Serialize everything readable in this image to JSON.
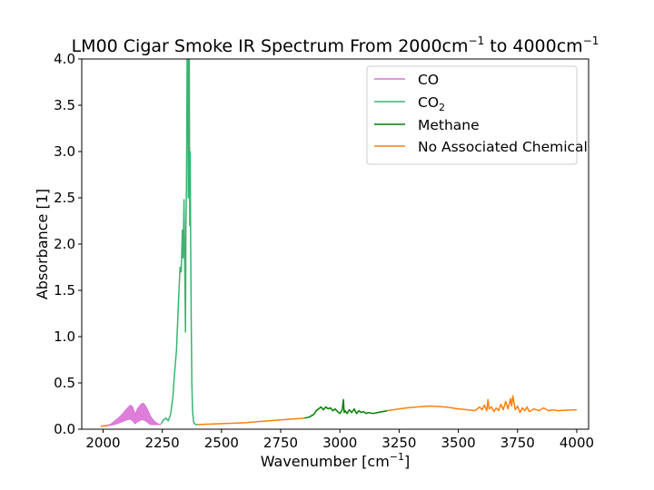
{
  "chart_data": {
    "type": "line",
    "title": "LM00 Cigar Smoke IR Spectrum From 2000cm",
    "title_sup1": "−1",
    "title_mid": " to 4000cm",
    "title_sup2": "−1",
    "xlabel": "Wavenumber [cm",
    "xlabel_sup": "−1",
    "xlabel_end": "]",
    "ylabel": "Absorbance [1]",
    "xlim": [
      1910,
      4050
    ],
    "ylim": [
      0,
      4.0
    ],
    "x_ticks": [
      2000,
      2250,
      2500,
      2750,
      3000,
      3250,
      3500,
      3750,
      4000
    ],
    "y_ticks": [
      0.0,
      0.5,
      1.0,
      1.5,
      2.0,
      2.5,
      3.0,
      3.5,
      4.0
    ],
    "y_tick_labels": [
      "0.0",
      "0.5",
      "1.0",
      "1.5",
      "2.0",
      "2.5",
      "3.0",
      "3.5",
      "4.0"
    ],
    "grid": false,
    "legend_position": "top-right",
    "series": [
      {
        "name": "CO",
        "color": "#da70d6",
        "fill": true,
        "x": [
          2000,
          2030,
          2060,
          2080,
          2100,
          2115,
          2125,
          2135,
          2145,
          2160,
          2170,
          2180,
          2190,
          2200,
          2215,
          2230,
          2245
        ],
        "upper": [
          0.035,
          0.05,
          0.11,
          0.16,
          0.22,
          0.26,
          0.24,
          0.16,
          0.22,
          0.27,
          0.28,
          0.25,
          0.2,
          0.14,
          0.09,
          0.06,
          0.05
        ],
        "lower": [
          0.035,
          0.04,
          0.06,
          0.08,
          0.1,
          0.11,
          0.09,
          0.06,
          0.08,
          0.1,
          0.1,
          0.09,
          0.07,
          0.05,
          0.05,
          0.05,
          0.05
        ]
      },
      {
        "name": "CO2",
        "name_sub": "2",
        "color": "#3cb371",
        "x": [
          2245,
          2255,
          2265,
          2275,
          2285,
          2295,
          2300,
          2310,
          2318,
          2325,
          2330,
          2335,
          2338,
          2342,
          2345,
          2348,
          2350,
          2352,
          2355,
          2358,
          2360,
          2362,
          2364,
          2366,
          2368,
          2370,
          2372,
          2375,
          2378,
          2382,
          2386,
          2392,
          2400
        ],
        "y": [
          0.06,
          0.1,
          0.12,
          0.09,
          0.16,
          0.35,
          0.55,
          0.85,
          1.35,
          1.75,
          1.7,
          2.15,
          1.85,
          2.48,
          1.75,
          1.05,
          2.2,
          2.6,
          4.0,
          4.0,
          2.5,
          4.0,
          4.0,
          2.2,
          3.0,
          2.0,
          1.2,
          0.5,
          0.2,
          0.08,
          0.06,
          0.05,
          0.05
        ]
      },
      {
        "name": "Methane",
        "color": "#008000",
        "x": [
          2850,
          2870,
          2890,
          2900,
          2910,
          2920,
          2930,
          2940,
          2950,
          2960,
          2970,
          2980,
          2990,
          3000,
          3010,
          3015,
          3018,
          3022,
          3030,
          3040,
          3050,
          3060,
          3070,
          3080,
          3090,
          3100,
          3110,
          3120,
          3140,
          3160,
          3180,
          3200
        ],
        "y": [
          0.12,
          0.13,
          0.16,
          0.2,
          0.22,
          0.24,
          0.21,
          0.24,
          0.22,
          0.23,
          0.2,
          0.22,
          0.19,
          0.17,
          0.21,
          0.32,
          0.18,
          0.2,
          0.17,
          0.21,
          0.18,
          0.22,
          0.17,
          0.2,
          0.18,
          0.19,
          0.17,
          0.18,
          0.17,
          0.18,
          0.19,
          0.2
        ]
      },
      {
        "name": "No Associated Chemical",
        "color": "#ff7f0e",
        "segments": [
          {
            "x": [
              1990,
              2000,
              2010,
              2020
            ],
            "y": [
              0.03,
              0.035,
              0.035,
              0.04
            ]
          },
          {
            "x": [
              2400,
              2450,
              2500,
              2550,
              2600,
              2650,
              2700,
              2750,
              2800,
              2830,
              2850
            ],
            "y": [
              0.05,
              0.055,
              0.06,
              0.065,
              0.07,
              0.08,
              0.09,
              0.1,
              0.11,
              0.115,
              0.12
            ]
          },
          {
            "x": [
              3200,
              3250,
              3300,
              3350,
              3380,
              3420,
              3460,
              3500,
              3540,
              3570,
              3590,
              3600,
              3610,
              3620,
              3625,
              3630,
              3640,
              3650,
              3660,
              3670,
              3680,
              3690,
              3700,
              3710,
              3720,
              3725,
              3730,
              3740,
              3750,
              3760,
              3770,
              3780,
              3790,
              3800,
              3820,
              3840,
              3860,
              3880,
              3900,
              3920,
              3950,
              4000
            ],
            "y": [
              0.2,
              0.22,
              0.235,
              0.245,
              0.25,
              0.245,
              0.235,
              0.22,
              0.21,
              0.2,
              0.24,
              0.21,
              0.26,
              0.2,
              0.32,
              0.22,
              0.24,
              0.19,
              0.23,
              0.2,
              0.27,
              0.21,
              0.3,
              0.22,
              0.33,
              0.25,
              0.36,
              0.21,
              0.25,
              0.18,
              0.23,
              0.2,
              0.24,
              0.19,
              0.22,
              0.2,
              0.23,
              0.2,
              0.21,
              0.2,
              0.205,
              0.21
            ]
          }
        ]
      }
    ]
  }
}
